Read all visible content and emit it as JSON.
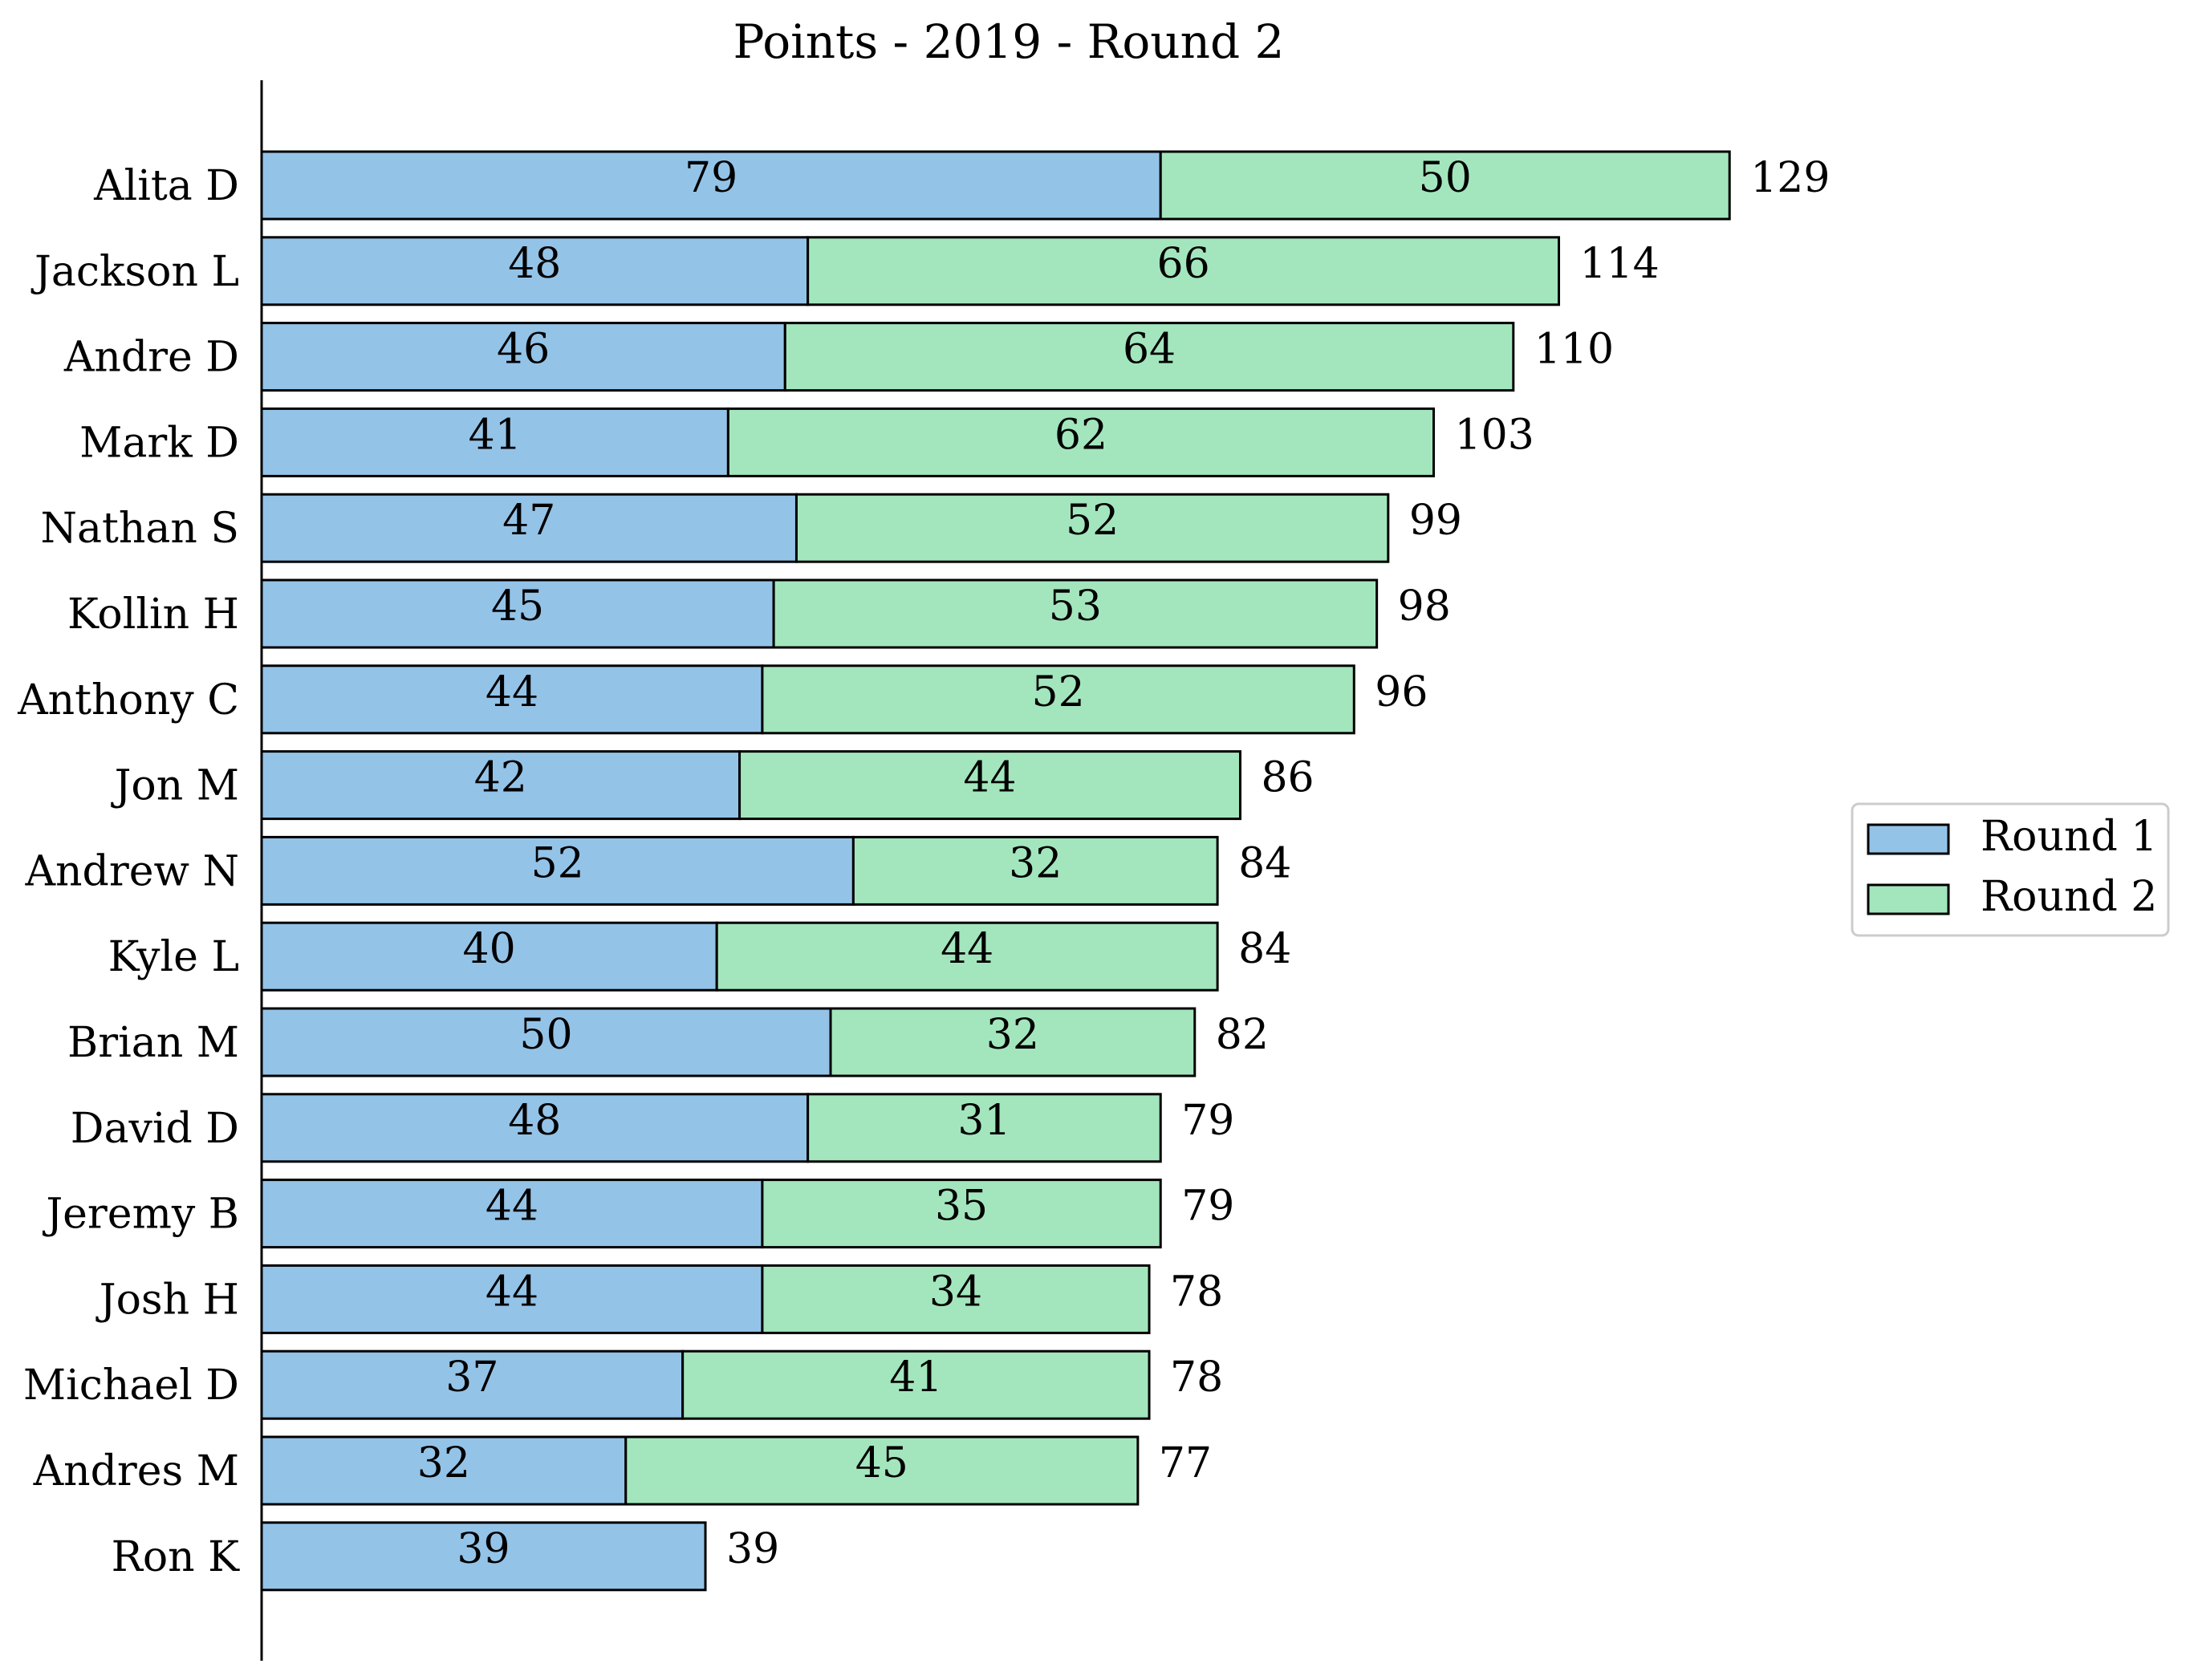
{
  "chart_data": {
    "type": "bar",
    "orientation": "horizontal",
    "stacked": true,
    "title": "Points - 2019 - Round 2",
    "xlabel": "",
    "ylabel": "",
    "xlim": [
      0,
      135
    ],
    "grid": false,
    "legend_position": "right",
    "categories": [
      "Alita D",
      "Jackson L",
      "Andre D",
      "Mark D",
      "Nathan S",
      "Kollin H",
      "Anthony C",
      "Jon M",
      "Andrew N",
      "Kyle L",
      "Brian M",
      "David D",
      "Jeremy B",
      "Josh H",
      "Michael D",
      "Andres M",
      "Ron K"
    ],
    "series": [
      {
        "name": "Round 1",
        "color": "#94c3e8",
        "values": [
          79,
          48,
          46,
          41,
          47,
          45,
          44,
          42,
          52,
          40,
          50,
          48,
          44,
          44,
          37,
          32,
          39
        ]
      },
      {
        "name": "Round 2",
        "color": "#a3e6bd",
        "values": [
          50,
          66,
          64,
          62,
          52,
          53,
          52,
          44,
          32,
          44,
          32,
          31,
          35,
          34,
          41,
          45,
          null
        ]
      }
    ],
    "totals": [
      129,
      114,
      110,
      103,
      99,
      98,
      96,
      86,
      84,
      84,
      82,
      79,
      79,
      78,
      78,
      77,
      39
    ]
  }
}
